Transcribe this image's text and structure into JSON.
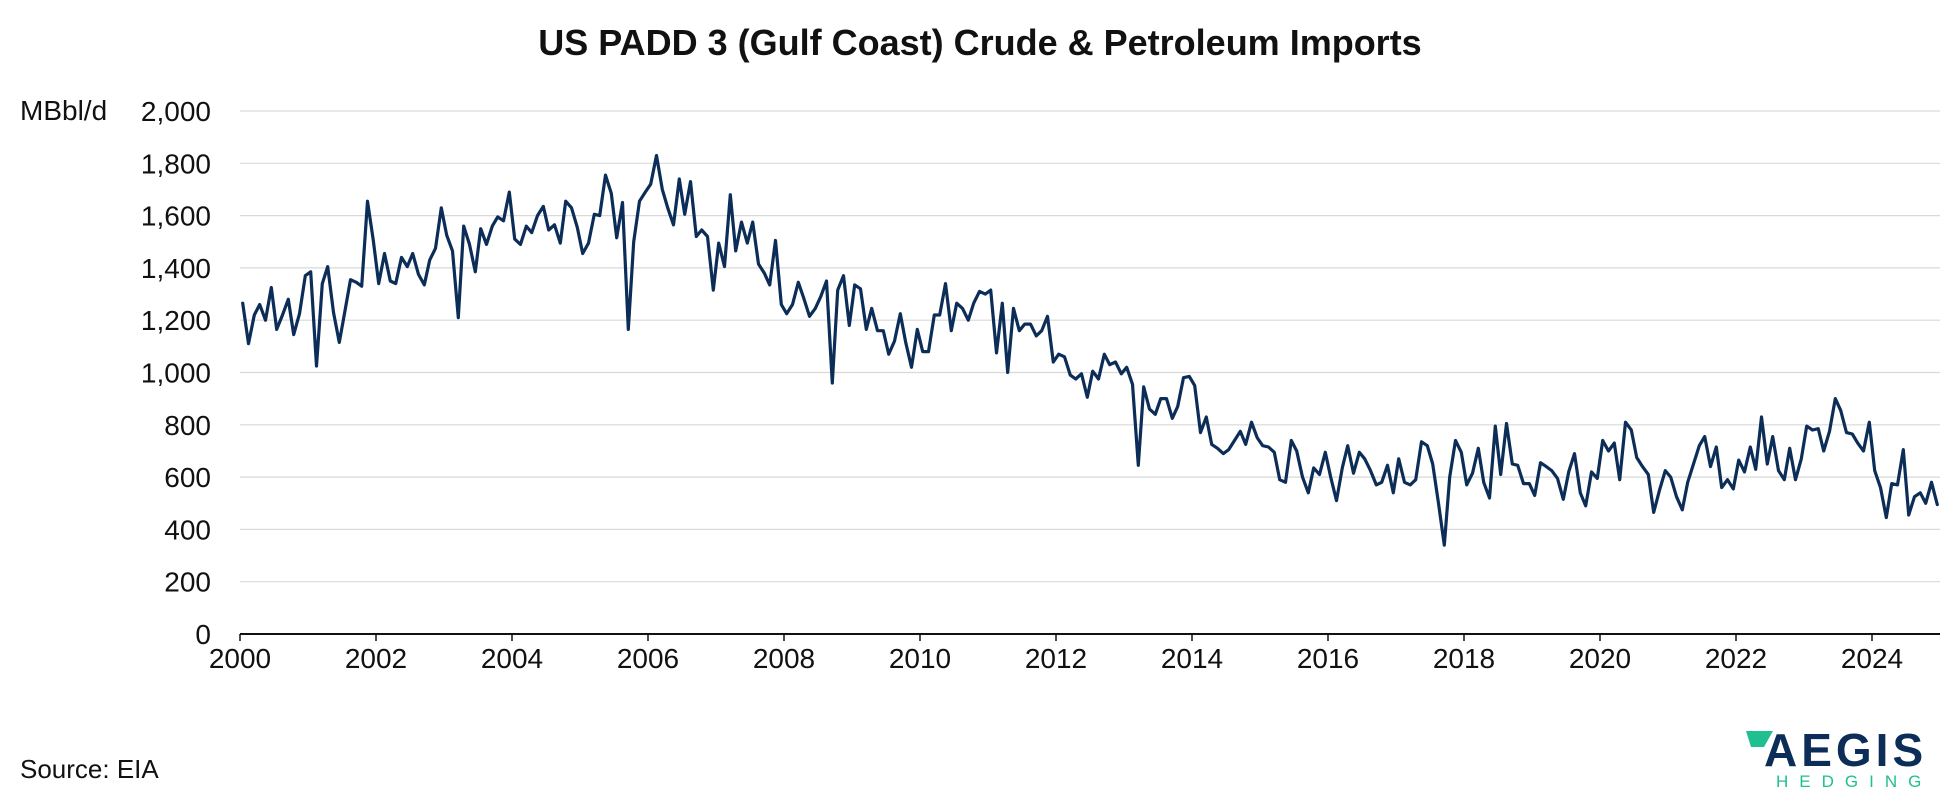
{
  "chart_data": {
    "type": "line",
    "title": "US PADD 3 (Gulf Coast) Crude & Petroleum Imports",
    "ylabel": "MBbl/d",
    "xlabel": "",
    "ylim": [
      0,
      2000
    ],
    "xlim": [
      2000.0,
      2025.0
    ],
    "y_ticks": [
      "0",
      "200",
      "400",
      "600",
      "800",
      "1,000",
      "1,200",
      "1,400",
      "1,600",
      "1,800",
      "2,000"
    ],
    "y_tick_values": [
      0,
      200,
      400,
      600,
      800,
      1000,
      1200,
      1400,
      1600,
      1800,
      2000
    ],
    "x_ticks": [
      "2000",
      "2002",
      "2004",
      "2006",
      "2008",
      "2010",
      "2012",
      "2014",
      "2016",
      "2018",
      "2020",
      "2022",
      "2024"
    ],
    "x_tick_values": [
      2000,
      2002,
      2004,
      2006,
      2008,
      2010,
      2012,
      2014,
      2016,
      2018,
      2020,
      2022,
      2024
    ],
    "grid": true,
    "line_color": "#0b2d57",
    "series": [
      {
        "name": "",
        "x": [
          2000.04,
          2000.125,
          2000.21,
          2000.29,
          2000.375,
          2000.46,
          2000.54,
          2000.625,
          2000.71,
          2000.79,
          2000.875,
          2000.96,
          2001.04,
          2001.125,
          2001.21,
          2001.29,
          2001.375,
          2001.46,
          2001.54,
          2001.625,
          2001.71,
          2001.79,
          2001.875,
          2001.96,
          2002.04,
          2002.125,
          2002.21,
          2002.29,
          2002.375,
          2002.46,
          2002.54,
          2002.625,
          2002.71,
          2002.79,
          2002.875,
          2002.96,
          2003.04,
          2003.125,
          2003.21,
          2003.29,
          2003.375,
          2003.46,
          2003.54,
          2003.625,
          2003.71,
          2003.79,
          2003.875,
          2003.96,
          2004.04,
          2004.125,
          2004.21,
          2004.29,
          2004.375,
          2004.46,
          2004.54,
          2004.625,
          2004.71,
          2004.79,
          2004.875,
          2004.96,
          2005.04,
          2005.125,
          2005.21,
          2005.29,
          2005.375,
          2005.46,
          2005.54,
          2005.625,
          2005.71,
          2005.79,
          2005.875,
          2005.96,
          2006.04,
          2006.125,
          2006.21,
          2006.29,
          2006.375,
          2006.46,
          2006.54,
          2006.625,
          2006.71,
          2006.79,
          2006.875,
          2006.96,
          2007.04,
          2007.125,
          2007.21,
          2007.29,
          2007.375,
          2007.46,
          2007.54,
          2007.625,
          2007.71,
          2007.79,
          2007.875,
          2007.96,
          2008.04,
          2008.125,
          2008.21,
          2008.29,
          2008.375,
          2008.46,
          2008.54,
          2008.625,
          2008.71,
          2008.79,
          2008.875,
          2008.96,
          2009.04,
          2009.125,
          2009.21,
          2009.29,
          2009.375,
          2009.46,
          2009.54,
          2009.625,
          2009.71,
          2009.79,
          2009.875,
          2009.96,
          2010.04,
          2010.125,
          2010.21,
          2010.29,
          2010.375,
          2010.46,
          2010.54,
          2010.625,
          2010.71,
          2010.79,
          2010.875,
          2010.96,
          2011.04,
          2011.125,
          2011.21,
          2011.29,
          2011.375,
          2011.46,
          2011.54,
          2011.625,
          2011.71,
          2011.79,
          2011.875,
          2011.96,
          2012.04,
          2012.125,
          2012.21,
          2012.29,
          2012.375,
          2012.46,
          2012.54,
          2012.625,
          2012.71,
          2012.79,
          2012.875,
          2012.96,
          2013.04,
          2013.125,
          2013.21,
          2013.29,
          2013.375,
          2013.46,
          2013.54,
          2013.625,
          2013.71,
          2013.79,
          2013.875,
          2013.96,
          2014.04,
          2014.125,
          2014.21,
          2014.29,
          2014.375,
          2014.46,
          2014.54,
          2014.625,
          2014.71,
          2014.79,
          2014.875,
          2014.96,
          2015.04,
          2015.125,
          2015.21,
          2015.29,
          2015.375,
          2015.46,
          2015.54,
          2015.625,
          2015.71,
          2015.79,
          2015.875,
          2015.96,
          2016.04,
          2016.125,
          2016.21,
          2016.29,
          2016.375,
          2016.46,
          2016.54,
          2016.625,
          2016.71,
          2016.79,
          2016.875,
          2016.96,
          2017.04,
          2017.125,
          2017.21,
          2017.29,
          2017.375,
          2017.46,
          2017.54,
          2017.625,
          2017.71,
          2017.79,
          2017.875,
          2017.96,
          2018.04,
          2018.125,
          2018.21,
          2018.29,
          2018.375,
          2018.46,
          2018.54,
          2018.625,
          2018.71,
          2018.79,
          2018.875,
          2018.96,
          2019.04,
          2019.125,
          2019.21,
          2019.29,
          2019.375,
          2019.46,
          2019.54,
          2019.625,
          2019.71,
          2019.79,
          2019.875,
          2019.96,
          2020.04,
          2020.125,
          2020.21,
          2020.29,
          2020.375,
          2020.46,
          2020.54,
          2020.625,
          2020.71,
          2020.79,
          2020.875,
          2020.96,
          2021.04,
          2021.125,
          2021.21,
          2021.29,
          2021.375,
          2021.46,
          2021.54,
          2021.625,
          2021.71,
          2021.79,
          2021.875,
          2021.96,
          2022.04,
          2022.125,
          2022.21,
          2022.29,
          2022.375,
          2022.46,
          2022.54,
          2022.625,
          2022.71,
          2022.79,
          2022.875,
          2022.96,
          2023.04,
          2023.125,
          2023.21,
          2023.29,
          2023.375,
          2023.46,
          2023.54,
          2023.625,
          2023.71,
          2023.79,
          2023.875,
          2023.96,
          2024.04,
          2024.125,
          2024.21,
          2024.29,
          2024.375,
          2024.46,
          2024.54,
          2024.625,
          2024.71,
          2024.79,
          2024.875,
          2024.96
        ],
        "y": [
          1265,
          1110,
          1220,
          1260,
          1200,
          1325,
          1165,
          1220,
          1280,
          1145,
          1225,
          1370,
          1385,
          1025,
          1340,
          1405,
          1230,
          1115,
          1230,
          1355,
          1345,
          1330,
          1655,
          1505,
          1340,
          1455,
          1350,
          1340,
          1440,
          1405,
          1455,
          1375,
          1335,
          1430,
          1475,
          1630,
          1525,
          1465,
          1210,
          1560,
          1490,
          1385,
          1550,
          1490,
          1560,
          1595,
          1580,
          1690,
          1510,
          1490,
          1560,
          1535,
          1600,
          1635,
          1545,
          1565,
          1495,
          1655,
          1630,
          1555,
          1455,
          1495,
          1605,
          1600,
          1755,
          1685,
          1515,
          1650,
          1165,
          1500,
          1655,
          1690,
          1720,
          1830,
          1700,
          1630,
          1565,
          1740,
          1605,
          1730,
          1520,
          1545,
          1520,
          1315,
          1495,
          1405,
          1680,
          1465,
          1575,
          1495,
          1575,
          1415,
          1380,
          1335,
          1505,
          1260,
          1225,
          1260,
          1345,
          1285,
          1215,
          1245,
          1290,
          1350,
          960,
          1315,
          1370,
          1180,
          1335,
          1320,
          1165,
          1245,
          1160,
          1160,
          1070,
          1120,
          1225,
          1115,
          1020,
          1165,
          1080,
          1080,
          1220,
          1220,
          1340,
          1160,
          1265,
          1245,
          1200,
          1265,
          1310,
          1300,
          1315,
          1075,
          1265,
          1000,
          1245,
          1160,
          1185,
          1185,
          1140,
          1160,
          1215,
          1040,
          1070,
          1060,
          990,
          975,
          995,
          905,
          1005,
          975,
          1070,
          1030,
          1040,
          995,
          1020,
          955,
          645,
          945,
          860,
          840,
          900,
          900,
          825,
          870,
          980,
          985,
          950,
          770,
          830,
          725,
          710,
          690,
          705,
          740,
          775,
          725,
          810,
          750,
          720,
          715,
          695,
          590,
          580,
          740,
          700,
          600,
          540,
          635,
          610,
          695,
          600,
          510,
          635,
          720,
          615,
          695,
          670,
          625,
          570,
          580,
          645,
          540,
          670,
          580,
          570,
          590,
          735,
          720,
          650,
          500,
          340,
          600,
          740,
          695,
          570,
          615,
          710,
          580,
          520,
          795,
          610,
          805,
          650,
          645,
          575,
          575,
          530,
          655,
          640,
          625,
          595,
          515,
          620,
          690,
          540,
          490,
          620,
          595,
          740,
          700,
          730,
          590,
          810,
          780,
          675,
          640,
          610,
          465,
          550,
          625,
          600,
          525,
          475,
          580,
          650,
          720,
          755,
          640,
          715,
          560,
          590,
          555,
          665,
          620,
          715,
          630,
          830,
          650,
          755,
          625,
          590,
          710,
          590,
          670,
          795,
          780,
          785,
          700,
          775,
          900,
          855,
          770,
          765,
          730,
          700,
          810,
          625,
          560,
          445,
          575,
          570,
          705,
          455,
          525,
          540,
          500,
          580,
          495
        ]
      }
    ]
  },
  "footer": {
    "source": "Source: EIA"
  },
  "logo": {
    "name": "AEGIS",
    "tagline": "HEDGING",
    "colors": {
      "navy": "#0b2d57",
      "green": "#1fbf8f"
    }
  }
}
